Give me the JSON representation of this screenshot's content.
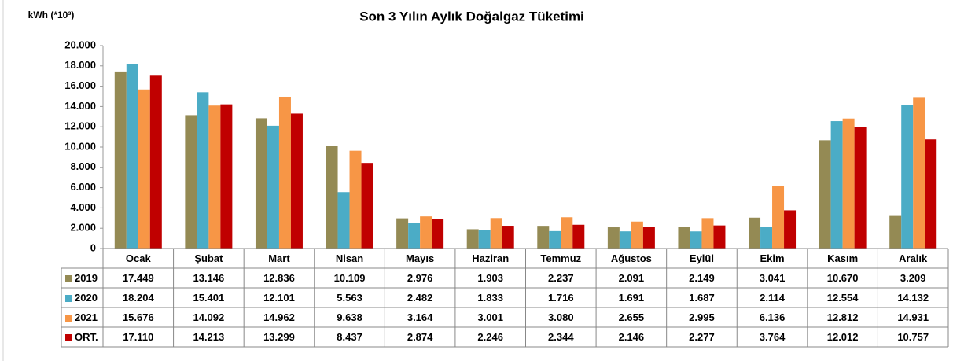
{
  "chart_data": {
    "type": "bar",
    "title": "Son 3 Yılın Aylık Doğalgaz Tüketimi",
    "y_axis_label": "kWh (*10³)",
    "categories": [
      "Ocak",
      "Şubat",
      "Mart",
      "Nisan",
      "Mayıs",
      "Haziran",
      "Temmuz",
      "Ağustos",
      "Eylül",
      "Ekim",
      "Kasım",
      "Aralık"
    ],
    "series": [
      {
        "name": "2019",
        "color": "#948a54",
        "values": [
          17449,
          13146,
          12836,
          10109,
          2976,
          1903,
          2237,
          2091,
          2149,
          3041,
          10670,
          3209
        ],
        "value_labels": [
          "17.449",
          "13.146",
          "12.836",
          "10.109",
          "2.976",
          "1.903",
          "2.237",
          "2.091",
          "2.149",
          "3.041",
          "10.670",
          "3.209"
        ]
      },
      {
        "name": "2020",
        "color": "#4bacc6",
        "values": [
          18204,
          15401,
          12101,
          5563,
          2482,
          1833,
          1716,
          1691,
          1687,
          2114,
          12554,
          14132
        ],
        "value_labels": [
          "18.204",
          "15.401",
          "12.101",
          "5.563",
          "2.482",
          "1.833",
          "1.716",
          "1.691",
          "1.687",
          "2.114",
          "12.554",
          "14.132"
        ]
      },
      {
        "name": "2021",
        "color": "#f79646",
        "values": [
          15676,
          14092,
          14962,
          9638,
          3164,
          3001,
          3080,
          2655,
          2995,
          6136,
          12812,
          14931
        ],
        "value_labels": [
          "15.676",
          "14.092",
          "14.962",
          "9.638",
          "3.164",
          "3.001",
          "3.080",
          "2.655",
          "2.995",
          "6.136",
          "12.812",
          "14.931"
        ]
      },
      {
        "name": "ORT.",
        "color": "#c00000",
        "values": [
          17110,
          14213,
          13299,
          8437,
          2874,
          2246,
          2344,
          2146,
          2277,
          3764,
          12012,
          10757
        ],
        "value_labels": [
          "17.110",
          "14.213",
          "13.299",
          "8.437",
          "2.874",
          "2.246",
          "2.344",
          "2.146",
          "2.277",
          "3.764",
          "12.012",
          "10.757"
        ]
      }
    ],
    "ylim": [
      0,
      20000
    ],
    "yticks": [
      0,
      {
        "value": 2000,
        "label": "2.000"
      },
      {
        "value": 4000,
        "label": "4.000"
      },
      {
        "value": 6000,
        "label": "6.000"
      },
      {
        "value": 8000,
        "label": "8.000"
      },
      {
        "value": 10000,
        "label": "10.000"
      },
      {
        "value": 12000,
        "label": "12.000"
      },
      {
        "value": 14000,
        "label": "14.000"
      },
      {
        "value": 16000,
        "label": "16.000"
      },
      {
        "value": 18000,
        "label": "18.000"
      },
      {
        "value": 20000,
        "label": "20.000"
      }
    ],
    "grid": false
  }
}
